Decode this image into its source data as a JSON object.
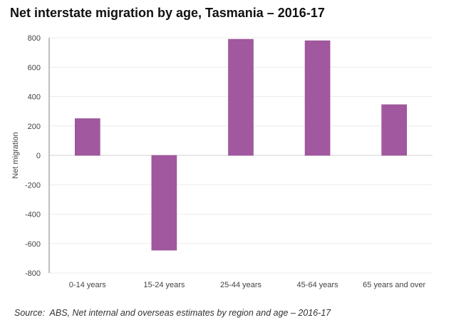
{
  "chart_data": {
    "type": "bar",
    "title": "Net interstate migration by age, Tasmania – 2016-17",
    "xlabel": "",
    "ylabel": "Net  migration",
    "categories": [
      "0-14 years",
      "15-24 years",
      "25-44 years",
      "45-64 years",
      "65 years and over"
    ],
    "values": [
      250,
      -645,
      790,
      780,
      345
    ],
    "ylim": [
      -800,
      800
    ],
    "yticks": [
      800,
      600,
      400,
      200,
      0,
      -200,
      -400,
      -600,
      -800
    ],
    "grid": true,
    "legend": "none",
    "bar_color": "#a2589f"
  },
  "source": "Source:  ABS, Net internal and overseas estimates by region and age – 2016-17"
}
